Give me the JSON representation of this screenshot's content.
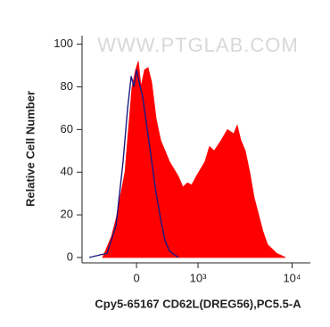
{
  "chart_data": {
    "type": "area",
    "watermark": "WWW.PTGLAB.COM",
    "x_label": "Cpy5-65167 CD62L(DREG56),PC5.5-A",
    "y_label": "Relative Cell Number",
    "xscale": "biexponential",
    "xlim": [
      -826,
      15500
    ],
    "xticks": [
      0,
      {
        "value": 1000,
        "label": "10³"
      },
      {
        "value": 10000,
        "label": "10⁴"
      }
    ],
    "ylim": [
      -2.5,
      104
    ],
    "yticks": [
      0,
      20,
      40,
      60,
      80,
      100
    ],
    "series": [
      {
        "color": "#ff0000",
        "fill": true,
        "x": [
          -437,
          -307,
          -247,
          -136,
          -52,
          -10,
          21,
          52,
          94,
          136,
          180,
          236,
          295,
          423,
          571,
          655,
          747,
          844,
          955,
          1203,
          1348,
          1513,
          1809,
          2105,
          2454,
          2677,
          2920,
          3250,
          3623,
          4030,
          4491,
          4996,
          5563,
          6887,
          8536
        ],
        "values": [
          0,
          10,
          18,
          40,
          80,
          88,
          92,
          80,
          88,
          89,
          82,
          65,
          55,
          45,
          38,
          33,
          35,
          34,
          38,
          45,
          52,
          50,
          55,
          60,
          58,
          62,
          55,
          50,
          40,
          28,
          20,
          12,
          6,
          2,
          0
        ]
      },
      {
        "color": "#1a1a80",
        "fill": false,
        "x": [
          -674,
          -370,
          -247,
          -158,
          -104,
          -62,
          -31,
          0,
          31,
          73,
          126,
          180,
          236,
          295,
          357,
          423,
          571
        ],
        "values": [
          0,
          2,
          15,
          45,
          70,
          85,
          80,
          88,
          82,
          75,
          60,
          45,
          30,
          18,
          8,
          3,
          0
        ]
      }
    ]
  }
}
